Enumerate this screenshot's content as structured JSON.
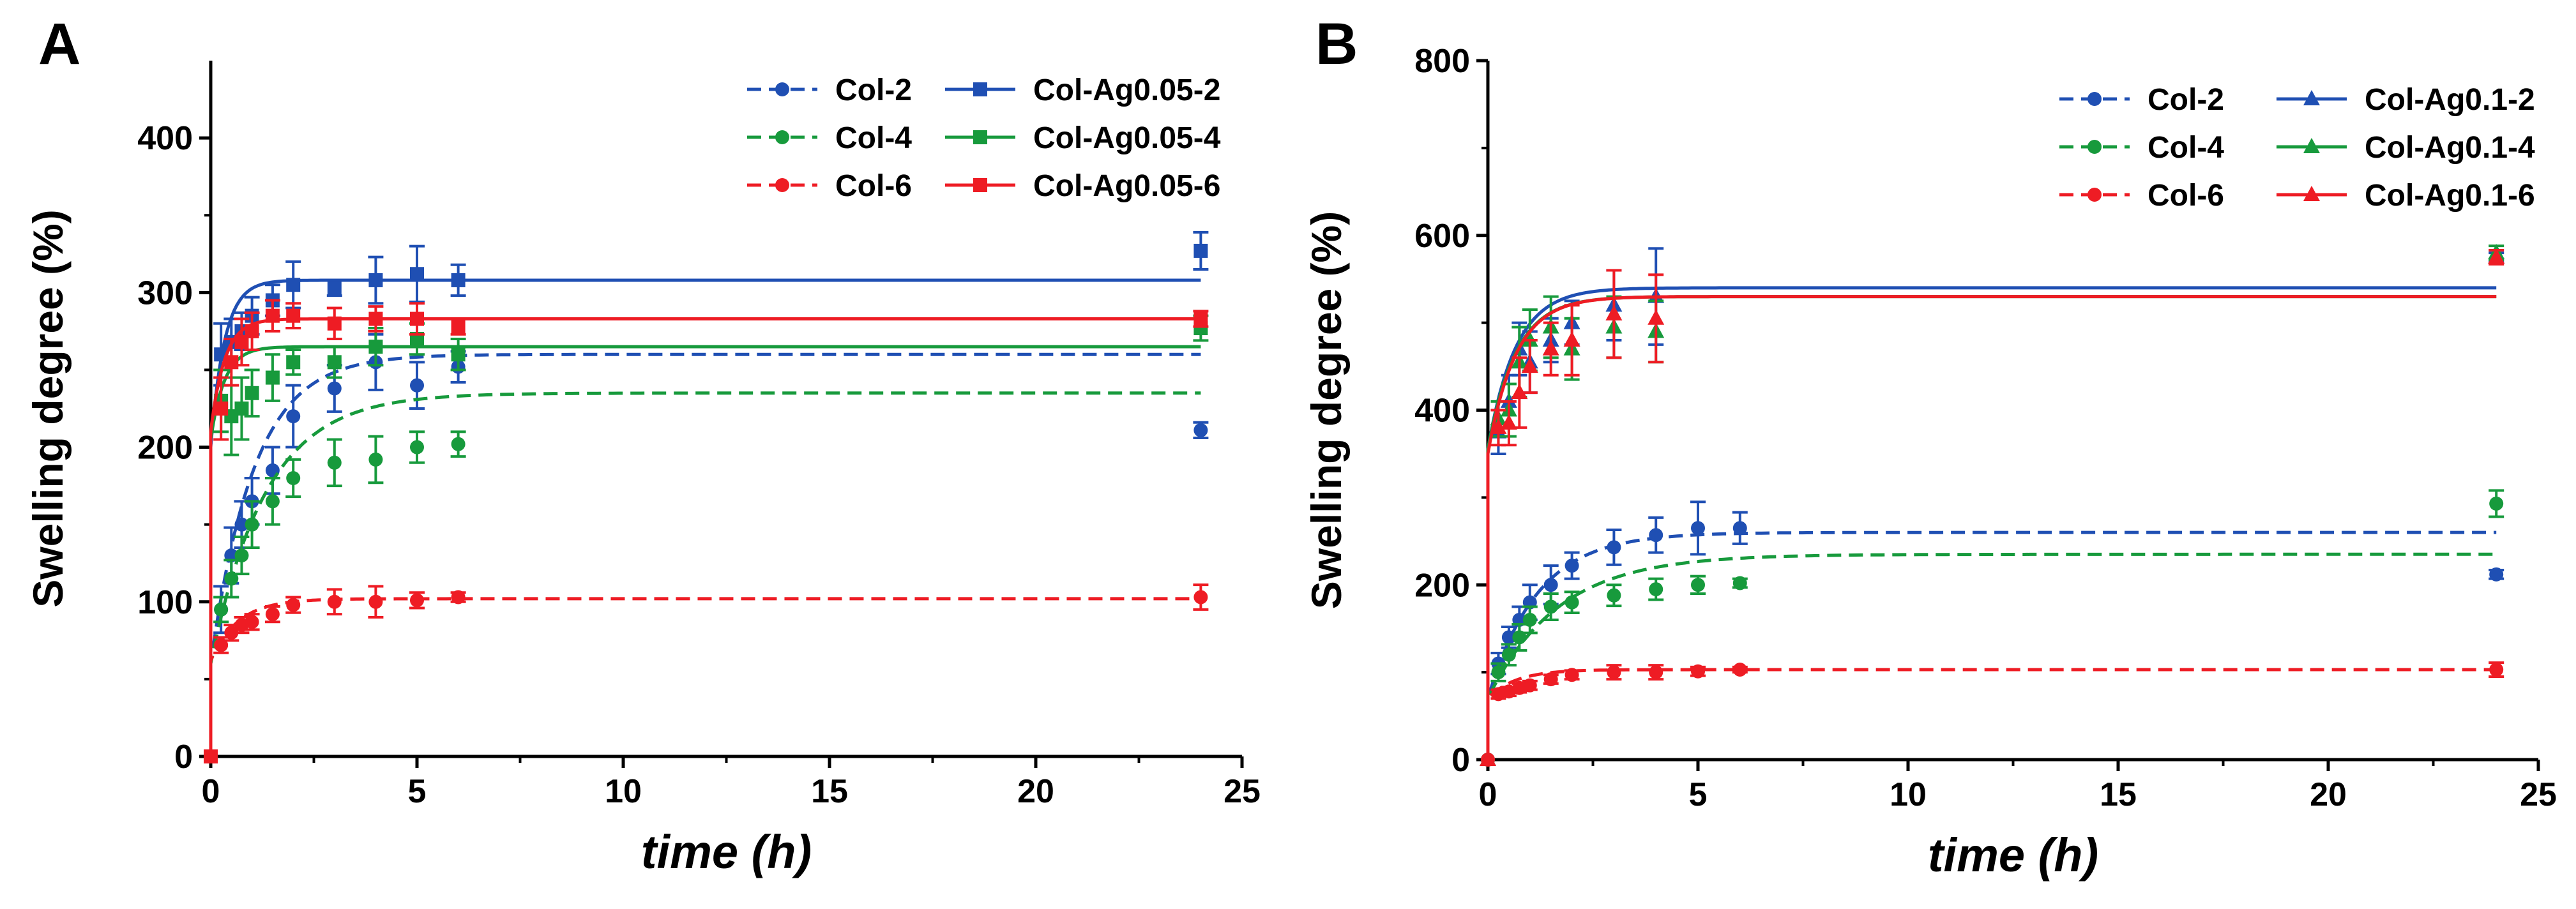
{
  "colors": {
    "blue": "#1f4fb3",
    "green": "#179a3c",
    "red": "#ee1c24",
    "axis": "#000000"
  },
  "chart_data": [
    {
      "type": "line",
      "panel_label": "A",
      "xlabel": "time (h)",
      "ylabel": "Swelling degree (%)",
      "xlim": [
        0,
        25
      ],
      "ylim": [
        0,
        450
      ],
      "xticks": [
        0,
        5,
        10,
        15,
        20,
        25
      ],
      "yticks": [
        0,
        100,
        200,
        300,
        400
      ],
      "legend_position": "top-right",
      "series": [
        {
          "name": "Col-2",
          "color": "blue",
          "marker": "circle",
          "dashed": true,
          "x": [
            0,
            0.25,
            0.5,
            0.75,
            1,
            1.5,
            2,
            3,
            4,
            5,
            6,
            24
          ],
          "y": [
            0,
            95,
            130,
            150,
            165,
            185,
            220,
            238,
            255,
            240,
            252,
            211
          ],
          "err": [
            0,
            15,
            18,
            15,
            15,
            15,
            20,
            15,
            18,
            15,
            10,
            5
          ],
          "fit": {
            "a": 60,
            "b": 200,
            "k": 0.95
          }
        },
        {
          "name": "Col-4",
          "color": "green",
          "marker": "circle",
          "dashed": true,
          "x": [
            0,
            0.25,
            0.5,
            0.75,
            1,
            1.5,
            2,
            3,
            4,
            5,
            6
          ],
          "y": [
            0,
            95,
            115,
            130,
            150,
            165,
            180,
            190,
            192,
            200,
            202
          ],
          "err": [
            0,
            8,
            12,
            12,
            15,
            15,
            12,
            15,
            15,
            10,
            8
          ],
          "fit": {
            "a": 60,
            "b": 175,
            "k": 0.75
          }
        },
        {
          "name": "Col-6",
          "color": "red",
          "marker": "circle",
          "dashed": true,
          "x": [
            0,
            0.25,
            0.5,
            0.75,
            1,
            1.5,
            2,
            3,
            4,
            5,
            6,
            24
          ],
          "y": [
            0,
            72,
            80,
            85,
            87,
            92,
            98,
            100,
            100,
            101,
            103,
            103
          ],
          "err": [
            0,
            5,
            5,
            5,
            5,
            5,
            5,
            8,
            10,
            5,
            3,
            8
          ],
          "fit": {
            "a": 62,
            "b": 40,
            "k": 1.5
          }
        },
        {
          "name": "Col-Ag0.05-2",
          "color": "blue",
          "marker": "square",
          "dashed": false,
          "x": [
            0,
            0.25,
            0.5,
            0.75,
            1,
            1.5,
            2,
            3,
            4,
            5,
            6,
            24
          ],
          "y": [
            0,
            260,
            268,
            275,
            285,
            295,
            305,
            303,
            308,
            312,
            308,
            327
          ],
          "err": [
            0,
            20,
            15,
            12,
            12,
            10,
            15,
            5,
            15,
            18,
            10,
            12
          ],
          "fit": {
            "a": 200,
            "b": 108,
            "k": 3.0
          }
        },
        {
          "name": "Col-Ag0.05-4",
          "color": "green",
          "marker": "square",
          "dashed": false,
          "x": [
            0,
            0.25,
            0.5,
            0.75,
            1,
            1.5,
            2,
            3,
            4,
            5,
            6,
            24
          ],
          "y": [
            0,
            230,
            220,
            225,
            235,
            245,
            255,
            255,
            265,
            270,
            260,
            277
          ],
          "err": [
            0,
            20,
            25,
            20,
            15,
            15,
            8,
            10,
            12,
            10,
            10,
            8
          ],
          "fit": {
            "a": 205,
            "b": 60,
            "k": 3.0
          }
        },
        {
          "name": "Col-Ag0.05-6",
          "color": "red",
          "marker": "square",
          "dashed": false,
          "x": [
            0,
            0.25,
            0.5,
            0.75,
            1,
            1.5,
            2,
            3,
            4,
            5,
            6,
            24
          ],
          "y": [
            0,
            225,
            255,
            268,
            275,
            285,
            285,
            280,
            283,
            283,
            278,
            283
          ],
          "err": [
            0,
            20,
            15,
            15,
            12,
            10,
            8,
            10,
            8,
            10,
            5,
            5
          ],
          "fit": {
            "a": 210,
            "b": 73,
            "k": 3.0
          }
        }
      ]
    },
    {
      "type": "line",
      "panel_label": "B",
      "xlabel": "time (h)",
      "ylabel": "Swelling degree (%)",
      "xlim": [
        0,
        25
      ],
      "ylim": [
        0,
        800
      ],
      "xticks": [
        0,
        5,
        10,
        15,
        20,
        25
      ],
      "yticks": [
        0,
        200,
        400,
        600,
        800
      ],
      "legend_position": "top-right",
      "series": [
        {
          "name": "Col-2",
          "color": "blue",
          "marker": "circle",
          "dashed": true,
          "x": [
            0,
            0.25,
            0.5,
            0.75,
            1,
            1.5,
            2,
            3,
            4,
            5,
            6,
            24
          ],
          "y": [
            0,
            110,
            140,
            160,
            180,
            200,
            222,
            243,
            257,
            265,
            265,
            212
          ],
          "err": [
            0,
            12,
            12,
            15,
            20,
            22,
            15,
            20,
            20,
            30,
            18,
            5
          ],
          "fit": {
            "a": 70,
            "b": 190,
            "k": 0.85
          }
        },
        {
          "name": "Col-4",
          "color": "green",
          "marker": "circle",
          "dashed": true,
          "x": [
            0,
            0.25,
            0.5,
            0.75,
            1,
            1.5,
            2,
            3,
            4,
            5,
            6,
            24
          ],
          "y": [
            0,
            100,
            120,
            140,
            160,
            175,
            180,
            188,
            195,
            200,
            202,
            293
          ],
          "err": [
            0,
            10,
            12,
            15,
            15,
            15,
            12,
            12,
            12,
            10,
            5,
            15
          ],
          "fit": {
            "a": 70,
            "b": 165,
            "k": 0.6
          }
        },
        {
          "name": "Col-6",
          "color": "red",
          "marker": "circle",
          "dashed": true,
          "x": [
            0,
            0.25,
            0.5,
            0.75,
            1,
            1.5,
            2,
            3,
            4,
            5,
            6,
            24
          ],
          "y": [
            0,
            75,
            78,
            82,
            85,
            92,
            97,
            100,
            100,
            101,
            103,
            103
          ],
          "err": [
            0,
            5,
            5,
            5,
            5,
            5,
            5,
            8,
            8,
            5,
            3,
            8
          ],
          "fit": {
            "a": 70,
            "b": 33,
            "k": 1.5
          }
        },
        {
          "name": "Col-Ag0.1-2",
          "color": "blue",
          "marker": "triangle",
          "dashed": false,
          "x": [
            0,
            0.25,
            0.5,
            0.75,
            1,
            1.5,
            2,
            3,
            4,
            24
          ],
          "y": [
            0,
            375,
            410,
            470,
            455,
            480,
            500,
            520,
            530,
            575
          ],
          "err": [
            0,
            25,
            30,
            30,
            35,
            25,
            25,
            40,
            55,
            5
          ],
          "fit": {
            "a": 355,
            "b": 185,
            "k": 1.5
          }
        },
        {
          "name": "Col-Ag0.1-4",
          "color": "green",
          "marker": "triangle",
          "dashed": false,
          "x": [
            0,
            0.25,
            0.5,
            0.75,
            1,
            1.5,
            2,
            3,
            4,
            24
          ],
          "y": [
            0,
            390,
            400,
            455,
            480,
            495,
            470,
            495,
            490,
            580
          ],
          "err": [
            0,
            20,
            30,
            40,
            35,
            35,
            35,
            35,
            35,
            8
          ],
          "fit": {
            "a": 355,
            "b": 175,
            "k": 1.5
          }
        },
        {
          "name": "Col-Ag0.1-6",
          "color": "red",
          "marker": "triangle",
          "dashed": false,
          "x": [
            0,
            0.25,
            0.5,
            0.75,
            1,
            1.5,
            2,
            3,
            4,
            24
          ],
          "y": [
            0,
            380,
            385,
            420,
            450,
            470,
            480,
            510,
            505,
            575
          ],
          "err": [
            0,
            20,
            25,
            40,
            30,
            30,
            40,
            50,
            50,
            8
          ],
          "fit": {
            "a": 350,
            "b": 180,
            "k": 1.5
          }
        }
      ]
    }
  ]
}
